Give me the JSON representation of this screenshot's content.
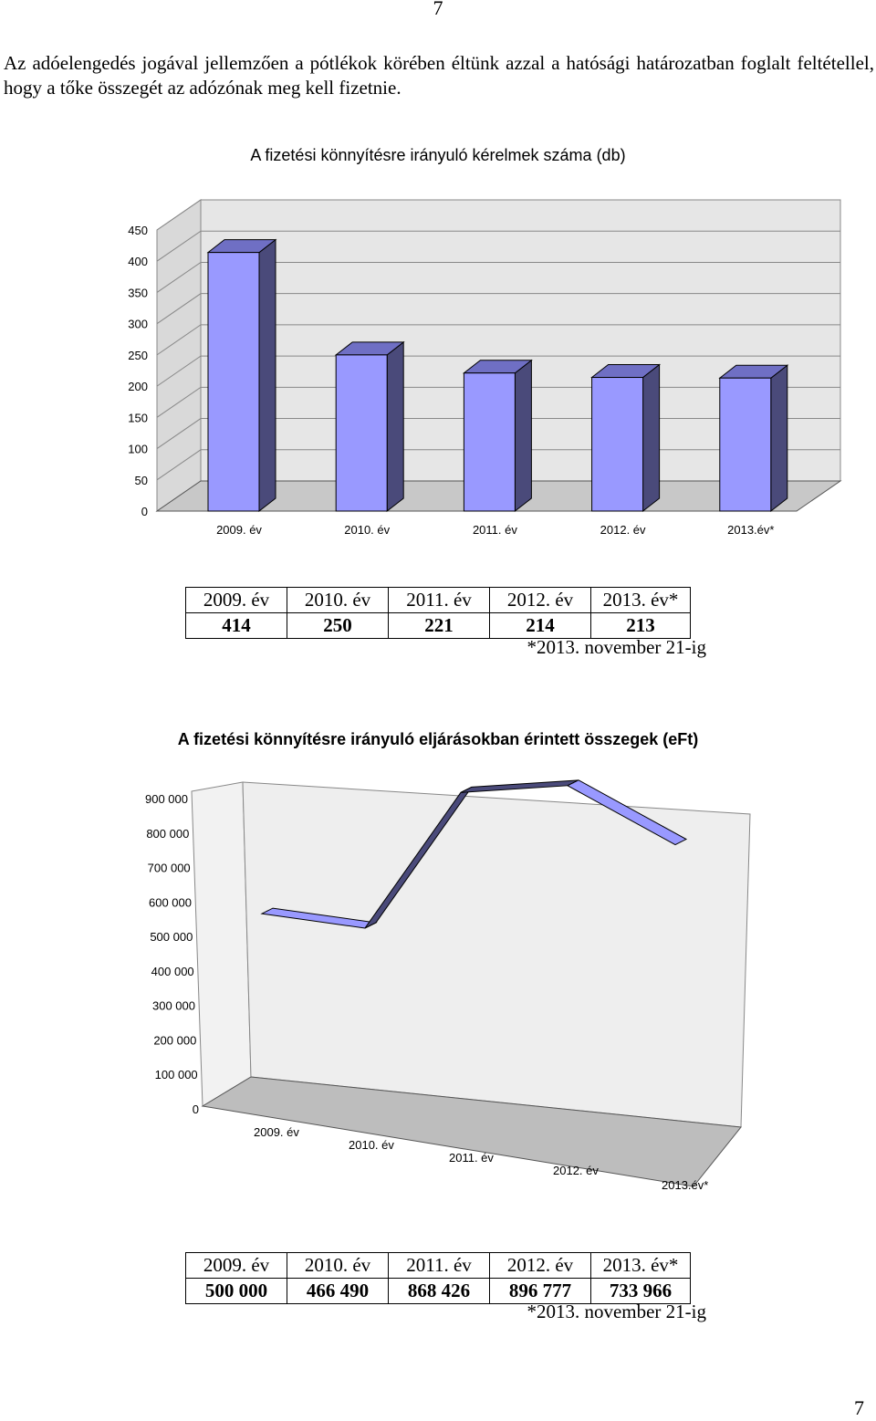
{
  "page_number": "7",
  "intro_text": "Az adóelengedés jogával jellemzően a pótlékok körében éltünk azzal a hatósági határozatban foglalt feltétellel, hogy a tőke összegét az adózónak meg kell fizetnie.",
  "colors": {
    "bar_front": "#9999ff",
    "bar_side": "#4a4a7a",
    "bar_top": "#6f6fc4",
    "wall": "#e6e6e6",
    "floor": "#c8c8c8"
  },
  "chart_data": [
    {
      "type": "bar",
      "title": "A fizetési könnyítésre irányuló kérelmek száma (db)",
      "categories": [
        "2009. év",
        "2010. év",
        "2011. év",
        "2012. év",
        "2013.év*"
      ],
      "values": [
        414,
        250,
        221,
        214,
        213
      ],
      "ylim": [
        0,
        450
      ],
      "yticks": [
        "0",
        "50",
        "100",
        "150",
        "200",
        "250",
        "300",
        "350",
        "400",
        "450"
      ],
      "grid": true
    },
    {
      "type": "line",
      "title": "A fizetési könnyítésre irányuló eljárásokban érintett összegek (eFt)",
      "categories": [
        "2009. év",
        "2010. év",
        "2011. év",
        "2012. év",
        "2013.év*"
      ],
      "values": [
        500000,
        466490,
        868426,
        896777,
        733966
      ],
      "ylim": [
        0,
        900000
      ],
      "yticks": [
        "0",
        "100 000",
        "200 000",
        "300 000",
        "400 000",
        "500 000",
        "600 000",
        "700 000",
        "800 000",
        "900 000"
      ],
      "grid": false
    }
  ],
  "table1": {
    "headers": [
      "2009. év",
      "2010. év",
      "2011. év",
      "2012. év",
      "2013. év*"
    ],
    "values": [
      "414",
      "250",
      "221",
      "214",
      "213"
    ],
    "note": "*2013. november 21-ig"
  },
  "table2": {
    "headers": [
      "2009. év",
      "2010. év",
      "2011. év",
      "2012. év",
      "2013. év*"
    ],
    "values": [
      "500 000",
      "466 490",
      "868 426",
      "896 777",
      "733 966"
    ],
    "note": "*2013. november 21-ig"
  }
}
